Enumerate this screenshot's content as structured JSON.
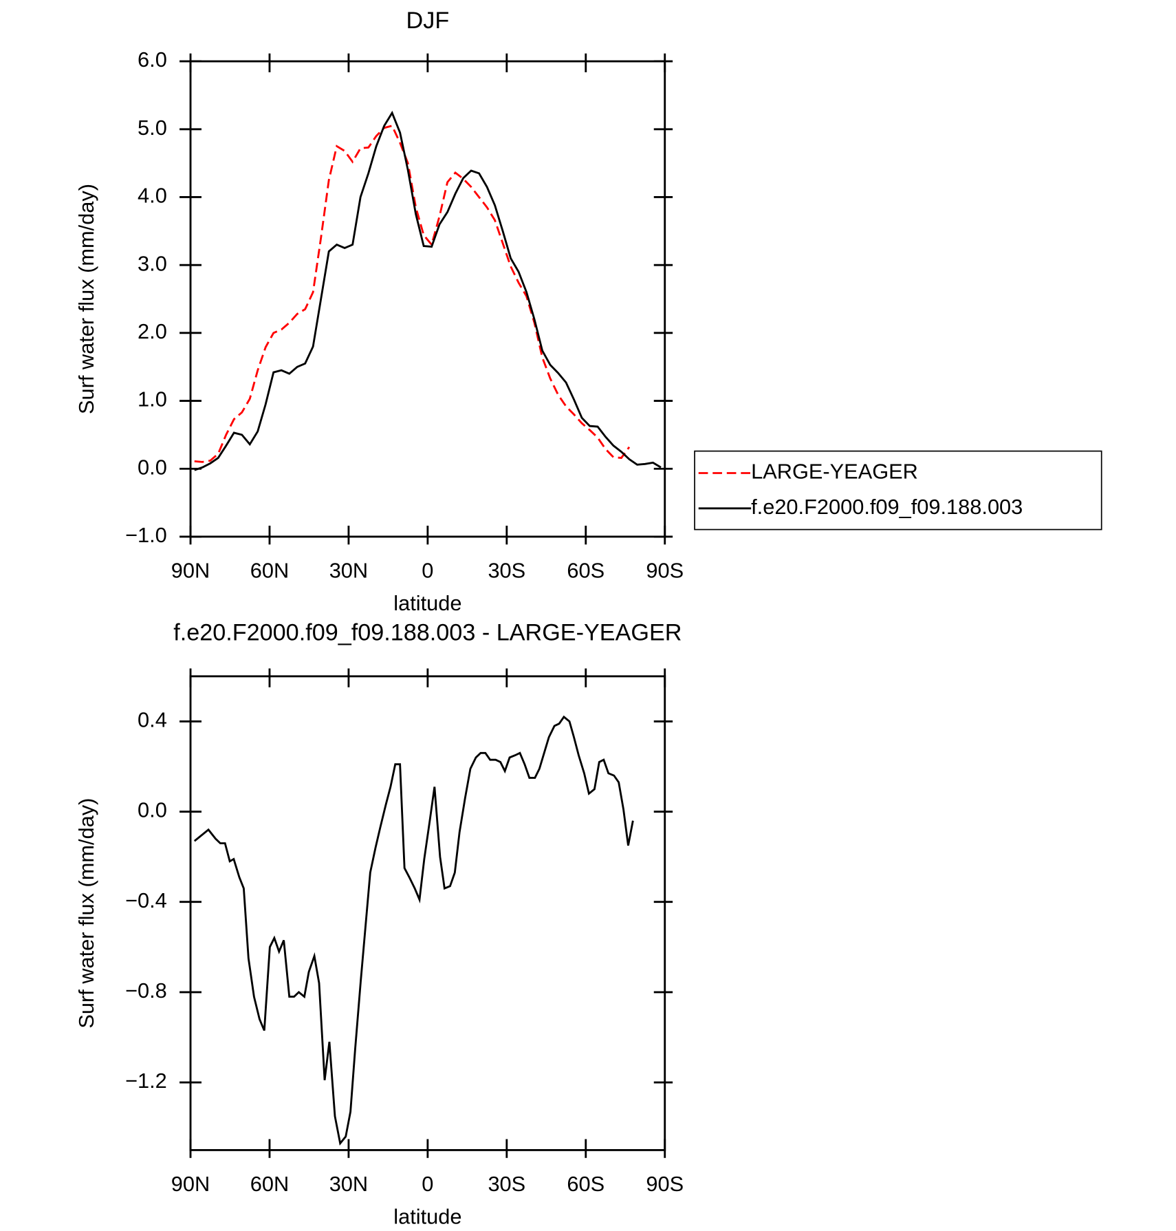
{
  "chart_data": [
    {
      "type": "line",
      "title": "DJF",
      "xlabel": "latitude",
      "ylabel": "Surf water flux (mm/day)",
      "xlim": [
        90,
        -90
      ],
      "xticks": [
        {
          "value": 90,
          "label": "90N"
        },
        {
          "value": 60,
          "label": "60N"
        },
        {
          "value": 30,
          "label": "30N"
        },
        0,
        {
          "value": -30,
          "label": "30S"
        },
        {
          "value": -60,
          "label": "60S"
        },
        {
          "value": -90,
          "label": "90S"
        }
      ],
      "ylim": [
        -1,
        6
      ],
      "yticks": [
        {
          "value": -1,
          "label": "−1.0"
        },
        {
          "value": 0,
          "label": "0.0"
        },
        {
          "value": 1,
          "label": "1.0"
        },
        {
          "value": 2,
          "label": "2.0"
        },
        {
          "value": 3,
          "label": "3.0"
        },
        {
          "value": 4,
          "label": "4.0"
        },
        {
          "value": 5,
          "label": "5.0"
        },
        {
          "value": 6,
          "label": "6.0"
        }
      ],
      "legend": "right",
      "x": [
        88.5,
        85.5,
        82.5,
        79.5,
        76.5,
        73.5,
        70.5,
        67.5,
        64.5,
        61.5,
        58.5,
        55.5,
        52.5,
        49.5,
        46.5,
        43.5,
        40.5,
        37.5,
        34.5,
        31.5,
        28.5,
        25.5,
        22.5,
        19.5,
        16.5,
        13.5,
        10.5,
        7.5,
        4.5,
        1.5,
        -1.5,
        -4.5,
        -7.5,
        -10.5,
        -13.5,
        -16.5,
        -19.5,
        -22.5,
        -25.5,
        -28.5,
        -31.5,
        -34.5,
        -37.5,
        -40.5,
        -43.5,
        -46.5,
        -49.5,
        -52.5,
        -55.5,
        -58.5,
        -61.5,
        -64.5,
        -67.5,
        -70.5,
        -73.5,
        -76.5,
        -79.5,
        -82.5,
        -85.5,
        -88.5
      ],
      "series": [
        {
          "name": "LARGE-YEAGER",
          "color": "#ff0000",
          "dashed": true,
          "values": [
            0.11,
            0.1,
            0.12,
            0.22,
            0.5,
            0.73,
            0.83,
            1.03,
            1.45,
            1.79,
            2.0,
            2.05,
            2.15,
            2.28,
            2.35,
            2.6,
            3.4,
            4.25,
            4.75,
            4.68,
            4.52,
            4.72,
            4.73,
            4.9,
            5.02,
            5.05,
            4.8,
            4.5,
            3.85,
            3.44,
            3.3,
            3.72,
            4.22,
            4.36,
            4.27,
            4.15,
            4.0,
            3.85,
            3.66,
            3.32,
            2.98,
            2.74,
            2.54,
            2.15,
            1.64,
            1.33,
            1.09,
            0.92,
            0.8,
            0.67,
            0.57,
            0.46,
            0.29,
            0.17,
            0.16,
            0.32,
            null,
            null,
            null,
            null
          ]
        },
        {
          "name": "f.e20.F2000.f09_f09.188.003",
          "color": "#000000",
          "dashed": false,
          "values": [
            -0.02,
            0.02,
            0.08,
            0.16,
            0.34,
            0.53,
            0.5,
            0.36,
            0.55,
            0.95,
            1.42,
            1.45,
            1.4,
            1.5,
            1.55,
            1.8,
            2.5,
            3.2,
            3.3,
            3.25,
            3.3,
            4.0,
            4.35,
            4.75,
            5.05,
            5.24,
            4.95,
            4.4,
            3.75,
            3.28,
            3.27,
            3.6,
            3.78,
            4.05,
            4.28,
            4.39,
            4.35,
            4.15,
            3.88,
            3.5,
            3.1,
            2.9,
            2.6,
            2.2,
            1.74,
            1.53,
            1.41,
            1.27,
            1.02,
            0.75,
            0.63,
            0.62,
            0.47,
            0.34,
            0.25,
            0.14,
            0.06,
            0.07,
            0.09,
            0.02
          ]
        }
      ]
    },
    {
      "type": "line",
      "title": "f.e20.F2000.f09_f09.188.003 - LARGE-YEAGER",
      "xlabel": "latitude",
      "ylabel": "Surf water flux (mm/day)",
      "xlim": [
        90,
        -90
      ],
      "xticks": [
        {
          "value": 90,
          "label": "90N"
        },
        {
          "value": 60,
          "label": "60N"
        },
        {
          "value": 30,
          "label": "30N"
        },
        0,
        {
          "value": -30,
          "label": "30S"
        },
        {
          "value": -60,
          "label": "60S"
        },
        {
          "value": -90,
          "label": "90S"
        }
      ],
      "ylim": [
        -1.5,
        0.6
      ],
      "yticks": [
        {
          "value": -1.2,
          "label": "−1.2"
        },
        {
          "value": -0.8,
          "label": "−0.8"
        },
        {
          "value": -0.4,
          "label": "−0.4"
        },
        {
          "value": 0,
          "label": "0.0"
        },
        0.4
      ],
      "x": [
        88.5,
        83.2,
        80.5,
        78.7,
        76.9,
        75.1,
        73.6,
        71.5,
        69.8,
        68.0,
        65.9,
        63.8,
        62.0,
        59.9,
        58.2,
        56.4,
        54.6,
        52.5,
        50.7,
        48.9,
        46.8,
        45.1,
        43.0,
        41.2,
        39.1,
        37.3,
        35.2,
        33.2,
        31.1,
        29.3,
        27.5,
        25.4,
        23.6,
        21.8,
        19.8,
        18.0,
        15.9,
        14.1,
        12.3,
        10.5,
        8.8,
        7.0,
        4.9,
        3.1,
        1.3,
        -0.8,
        -2.6,
        -4.7,
        -6.4,
        -8.5,
        -10.3,
        -12.1,
        -14.2,
        -16.2,
        -18.3,
        -20.1,
        -21.9,
        -23.7,
        -25.8,
        -27.6,
        -29.3,
        -31.1,
        -33.2,
        -35.0,
        -36.8,
        -38.6,
        -40.7,
        -42.4,
        -44.2,
        -46.0,
        -48.1,
        -49.9,
        -51.7,
        -53.8,
        -55.5,
        -57.3,
        -59.4,
        -61.2,
        -63.3,
        -65.1,
        -66.8,
        -68.6,
        -70.7,
        -72.5,
        -74.3,
        -76.1,
        -77.9
      ],
      "series": [
        {
          "color": "#000000",
          "dashed": false,
          "values": [
            -0.13,
            -0.08,
            -0.12,
            -0.14,
            -0.14,
            -0.22,
            -0.21,
            -0.29,
            -0.34,
            -0.65,
            -0.82,
            -0.92,
            -0.97,
            -0.6,
            -0.56,
            -0.62,
            -0.57,
            -0.82,
            -0.82,
            -0.8,
            -0.82,
            -0.71,
            -0.64,
            -0.76,
            -1.19,
            -1.02,
            -1.35,
            -1.47,
            -1.44,
            -1.33,
            -1.05,
            -0.75,
            -0.51,
            -0.27,
            -0.16,
            -0.07,
            0.03,
            0.11,
            0.21,
            0.21,
            -0.25,
            -0.29,
            -0.34,
            -0.39,
            -0.21,
            -0.04,
            0.11,
            -0.2,
            -0.34,
            -0.33,
            -0.27,
            -0.09,
            0.06,
            0.19,
            0.24,
            0.26,
            0.26,
            0.23,
            0.23,
            0.22,
            0.18,
            0.24,
            0.25,
            0.26,
            0.21,
            0.15,
            0.15,
            0.19,
            0.26,
            0.33,
            0.38,
            0.39,
            0.42,
            0.4,
            0.33,
            0.25,
            0.17,
            0.08,
            0.1,
            0.22,
            0.23,
            0.17,
            0.16,
            0.13,
            0.01,
            -0.15,
            -0.04
          ]
        }
      ]
    }
  ]
}
